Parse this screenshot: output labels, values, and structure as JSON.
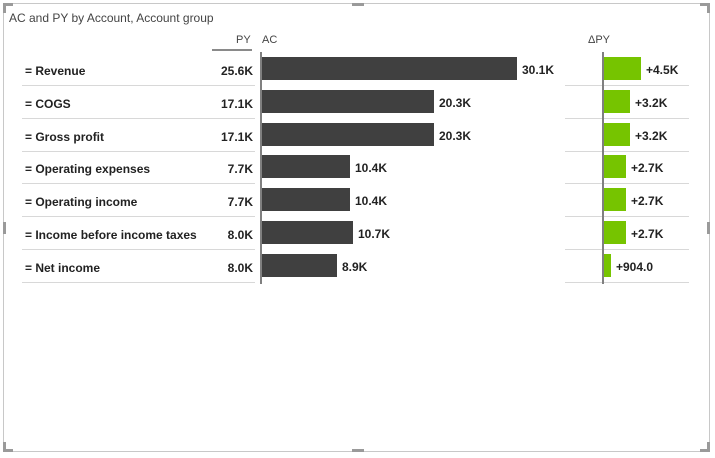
{
  "visual": {
    "title": "AC and PY by Account, Account group",
    "headers": {
      "py": "PY",
      "ac": "AC",
      "delta": "ΔPY"
    }
  },
  "colors": {
    "ac_bar": "#404040",
    "delta_positive": "#76c400",
    "axis": "#808080"
  },
  "chart_data": {
    "type": "bar",
    "categories": [
      "= Revenue",
      "= COGS",
      "= Gross profit",
      "= Operating expenses",
      "= Operating income",
      "= Income before income taxes",
      "= Net income"
    ],
    "series": [
      {
        "name": "PY",
        "values": [
          25600,
          17100,
          17100,
          7700,
          7700,
          8000,
          8000
        ],
        "labels": [
          "25.6K",
          "17.1K",
          "17.1K",
          "7.7K",
          "7.7K",
          "8.0K",
          "8.0K"
        ]
      },
      {
        "name": "AC",
        "values": [
          30100,
          20300,
          20300,
          10400,
          10400,
          10700,
          8900
        ],
        "labels": [
          "30.1K",
          "20.3K",
          "20.3K",
          "10.4K",
          "10.4K",
          "10.7K",
          "8.9K"
        ]
      },
      {
        "name": "ΔPY",
        "values": [
          4500,
          3200,
          3200,
          2700,
          2700,
          2700,
          904
        ],
        "labels": [
          "+4.5K",
          "+3.2K",
          "+3.2K",
          "+2.7K",
          "+2.7K",
          "+2.7K",
          "+904.0"
        ]
      }
    ]
  }
}
